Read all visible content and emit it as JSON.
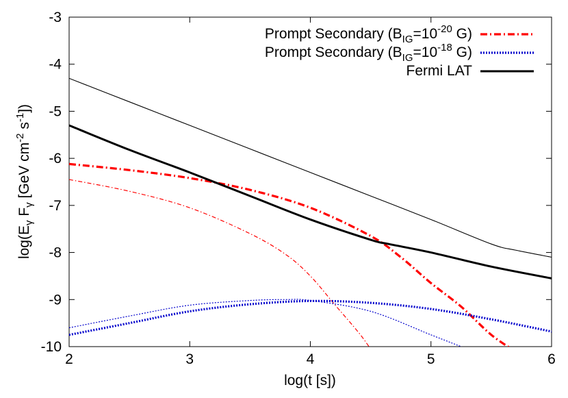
{
  "chart_data": {
    "type": "line",
    "title": "",
    "xlabel": "log(t [s])",
    "ylabel": "log(Eγ Fγ [GeV cm⁻² s⁻¹])",
    "xlim": [
      2,
      6
    ],
    "ylim": [
      -10,
      -3
    ],
    "xticks": [
      "2",
      "3",
      "4",
      "5",
      "6"
    ],
    "yticks": [
      "-10",
      "-9",
      "-8",
      "-7",
      "-6",
      "-5",
      "-4",
      "-3"
    ],
    "grid": false,
    "legend_position": "top-right",
    "legend": [
      {
        "series": 0,
        "label": "Prompt Secondary (BIG=10-20 G)",
        "color": "#ff0000",
        "dash": "dash-dot"
      },
      {
        "series": 2,
        "label": "Prompt Secondary (BIG=10-18 G)",
        "color": "#0000cc",
        "dash": "dotted"
      },
      {
        "series": 4,
        "label": "Fermi LAT",
        "color": "#000000",
        "dash": "solid"
      }
    ],
    "series": [
      {
        "name": "Prompt Secondary (BIG=10-20 G)",
        "color": "#ff0000",
        "dash": "dash-dot",
        "weight": "thick",
        "x": [
          2.0,
          2.5,
          3.0,
          3.5,
          4.0,
          4.5,
          4.75,
          5.0,
          5.25,
          5.5,
          5.7
        ],
        "y": [
          -6.12,
          -6.25,
          -6.42,
          -6.67,
          -7.05,
          -7.65,
          -8.1,
          -8.65,
          -9.15,
          -9.75,
          -10.1
        ]
      },
      {
        "name": "",
        "color": "#ff0000",
        "dash": "dash-dot",
        "weight": "thin",
        "x": [
          2.0,
          2.5,
          3.0,
          3.5,
          3.8,
          4.0,
          4.2,
          4.4,
          4.5
        ],
        "y": [
          -6.45,
          -6.7,
          -7.05,
          -7.6,
          -8.05,
          -8.5,
          -9.1,
          -9.7,
          -10.05
        ]
      },
      {
        "name": "Prompt Secondary (BIG=10-18 G)",
        "color": "#0000cc",
        "dash": "dotted",
        "weight": "thick",
        "x": [
          2.0,
          2.5,
          3.0,
          3.5,
          4.0,
          4.5,
          5.0,
          5.5,
          6.0
        ],
        "y": [
          -9.75,
          -9.5,
          -9.25,
          -9.1,
          -9.03,
          -9.07,
          -9.2,
          -9.42,
          -9.68
        ]
      },
      {
        "name": "",
        "color": "#0000cc",
        "dash": "dotted",
        "weight": "thin",
        "x": [
          2.0,
          2.5,
          3.0,
          3.5,
          3.8,
          4.0,
          4.5,
          5.0,
          5.25,
          5.4
        ],
        "y": [
          -9.6,
          -9.35,
          -9.12,
          -9.02,
          -9.0,
          -9.02,
          -9.25,
          -9.75,
          -10.0,
          -10.15
        ]
      },
      {
        "name": "Fermi LAT",
        "color": "#000000",
        "dash": "solid",
        "weight": "thick",
        "x": [
          2.0,
          2.5,
          3.0,
          3.5,
          4.0,
          4.5,
          4.65,
          5.0,
          5.5,
          6.0
        ],
        "y": [
          -5.3,
          -5.82,
          -6.3,
          -6.8,
          -7.3,
          -7.73,
          -7.82,
          -8.0,
          -8.3,
          -8.55
        ]
      },
      {
        "name": "",
        "color": "#000000",
        "dash": "solid",
        "weight": "thin",
        "x": [
          2.0,
          2.5,
          3.0,
          3.5,
          4.0,
          4.5,
          5.0,
          5.5,
          5.7,
          6.0
        ],
        "y": [
          -4.3,
          -4.8,
          -5.3,
          -5.8,
          -6.3,
          -6.8,
          -7.3,
          -7.82,
          -7.95,
          -8.1
        ]
      }
    ]
  }
}
